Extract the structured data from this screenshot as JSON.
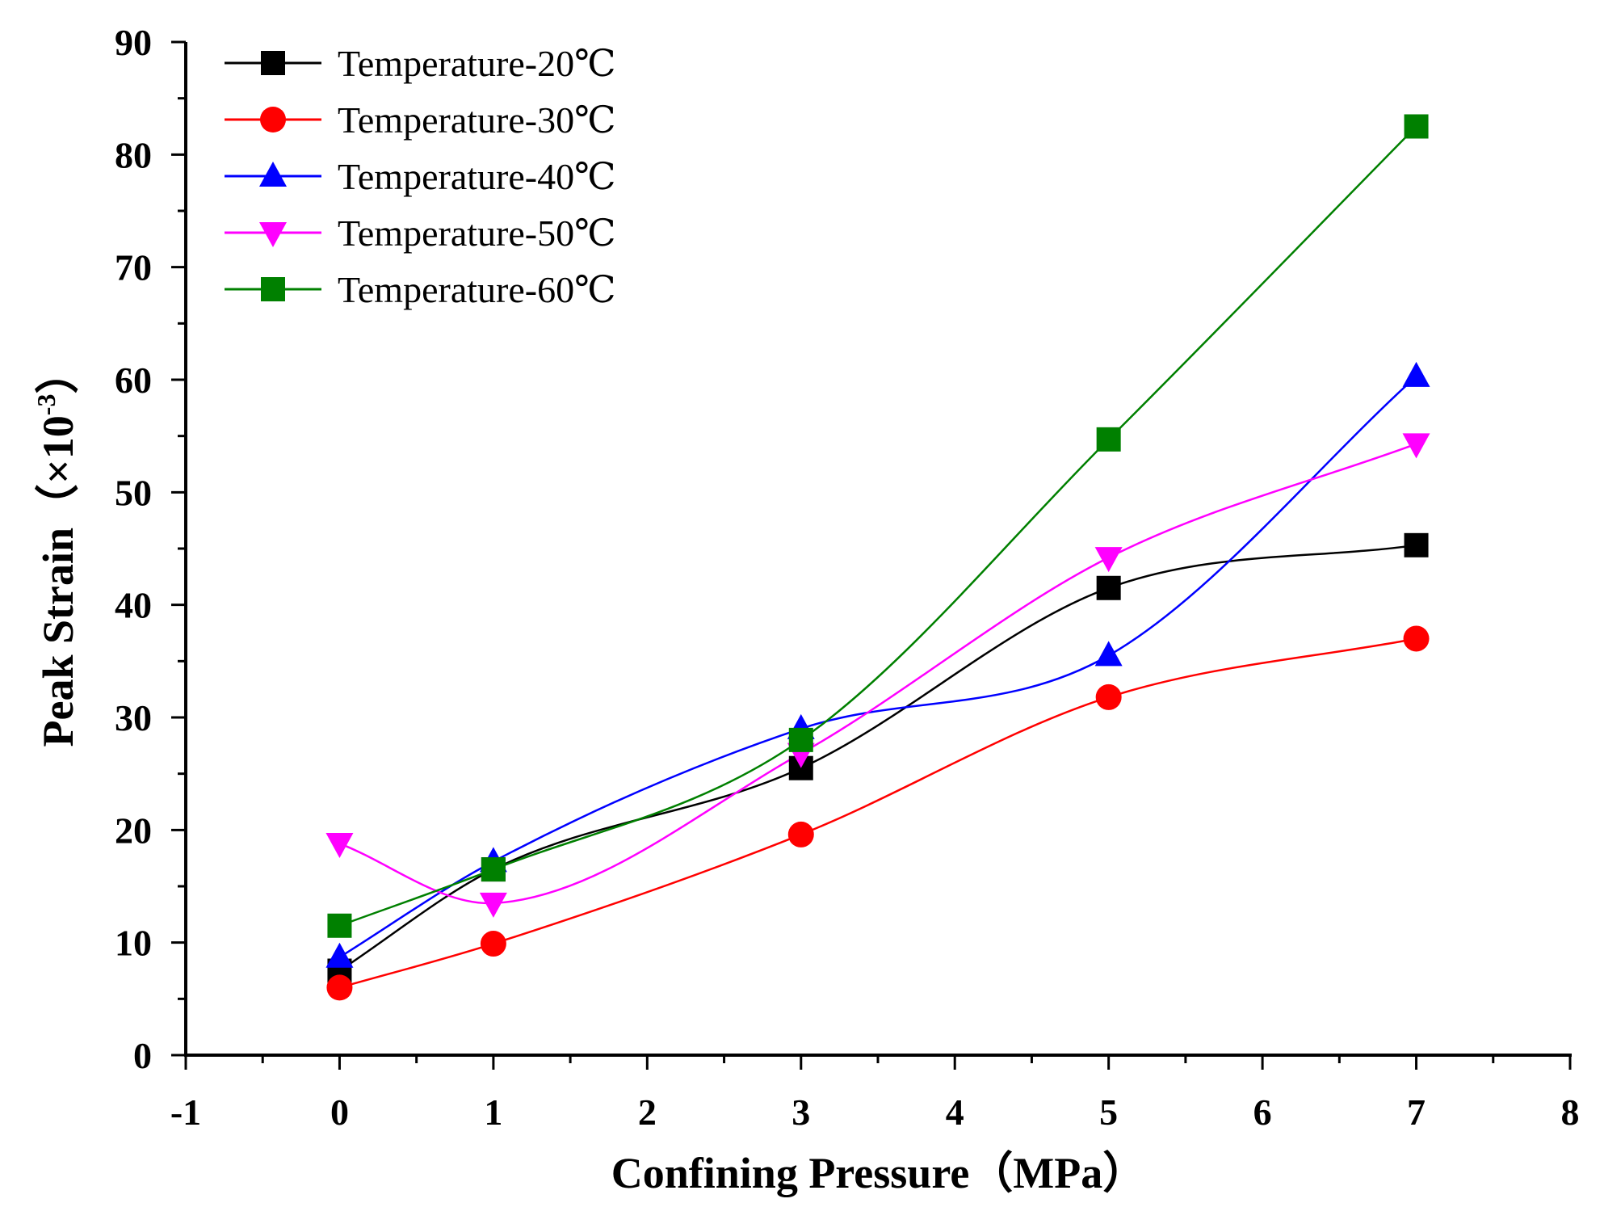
{
  "chart_data": {
    "type": "line",
    "title": "",
    "xlabel": "Confining Pressure（MPa）",
    "ylabel_main": "Peak Strain（×10",
    "ylabel_exp": "-3",
    "ylabel_close": "）",
    "xlim": [
      -1,
      8
    ],
    "ylim": [
      0,
      90
    ],
    "xticks": [
      -1,
      0,
      1,
      2,
      3,
      4,
      5,
      6,
      7,
      8
    ],
    "yticks": [
      0,
      10,
      20,
      30,
      40,
      50,
      60,
      70,
      80,
      90
    ],
    "xtick_labels": [
      "-1",
      "0",
      "1",
      "2",
      "3",
      "4",
      "5",
      "6",
      "7",
      "8"
    ],
    "ytick_labels": [
      "0",
      "10",
      "20",
      "30",
      "40",
      "50",
      "60",
      "70",
      "80",
      "90"
    ],
    "legend_position": "top-left",
    "x": [
      0,
      1,
      3,
      5,
      7
    ],
    "series": [
      {
        "name": "Temperature-20℃",
        "marker": "square",
        "color": "#000000",
        "values": [
          7.5,
          16.5,
          25.5,
          41.5,
          45.3
        ]
      },
      {
        "name": "Temperature-30℃",
        "marker": "circle",
        "color": "#ff0000",
        "values": [
          6.0,
          9.9,
          19.6,
          31.8,
          37.0
        ]
      },
      {
        "name": "Temperature-40℃",
        "marker": "triangle-up",
        "color": "#0000ff",
        "values": [
          8.7,
          17.2,
          29.0,
          35.5,
          60.3
        ]
      },
      {
        "name": "Temperature-50℃",
        "marker": "triangle-down",
        "color": "#ff00ff",
        "values": [
          18.8,
          13.5,
          26.8,
          44.2,
          54.3
        ]
      },
      {
        "name": "Temperature-60℃",
        "marker": "square",
        "color": "#008000",
        "values": [
          11.5,
          16.5,
          28.0,
          54.7,
          82.5
        ]
      }
    ]
  }
}
